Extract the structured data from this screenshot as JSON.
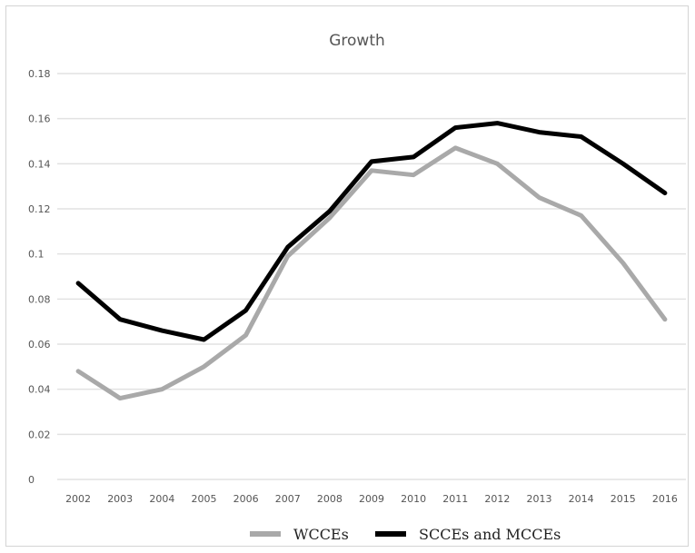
{
  "chart_data": {
    "type": "line",
    "title": "Growth",
    "xlabel": "",
    "ylabel": "",
    "x": [
      "2002",
      "2003",
      "2004",
      "2005",
      "2006",
      "2007",
      "2008",
      "2009",
      "2010",
      "2011",
      "2012",
      "2013",
      "2014",
      "2015",
      "2016"
    ],
    "y_ticks": [
      "0",
      "0.02",
      "0.04",
      "0.06",
      "0.08",
      "0.1",
      "0.12",
      "0.14",
      "0.16",
      "0.18"
    ],
    "ylim": [
      0,
      0.18
    ],
    "grid": "horizontal",
    "legend_position": "bottom",
    "series": [
      {
        "name": "WCCEs",
        "color": "#a9a9a9",
        "values": [
          0.048,
          0.036,
          0.04,
          0.05,
          0.064,
          0.099,
          0.116,
          0.137,
          0.135,
          0.147,
          0.14,
          0.125,
          0.117,
          0.096,
          0.071
        ]
      },
      {
        "name": "SCCEs and MCCEs",
        "color": "#000000",
        "values": [
          0.087,
          0.071,
          0.066,
          0.062,
          0.075,
          0.103,
          0.119,
          0.141,
          0.143,
          0.156,
          0.158,
          0.154,
          0.152,
          0.14,
          0.127
        ]
      }
    ]
  }
}
